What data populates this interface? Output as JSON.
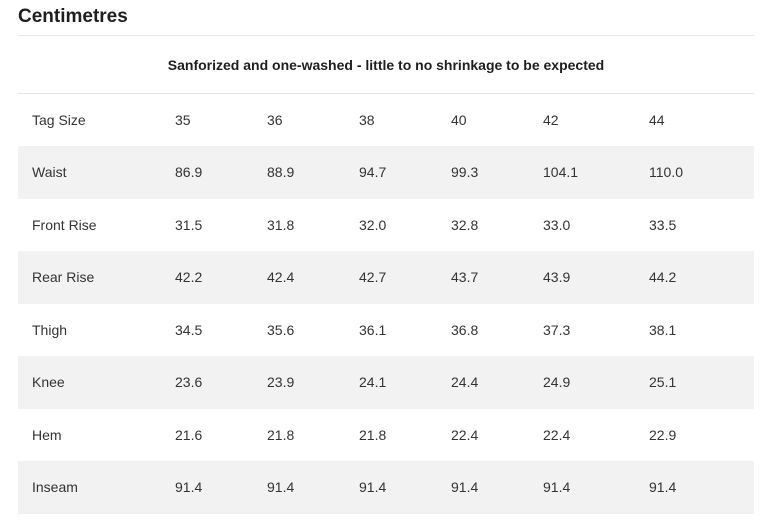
{
  "heading": "Centimetres",
  "caption": "Sanforized and one-washed - little to no shrinkage to be expected",
  "rows": [
    {
      "label": "Tag Size",
      "values": [
        "35",
        "36",
        "38",
        "40",
        "42",
        "44"
      ]
    },
    {
      "label": "Waist",
      "values": [
        "86.9",
        "88.9",
        "94.7",
        "99.3",
        "104.1",
        "110.0"
      ]
    },
    {
      "label": "Front Rise",
      "values": [
        "31.5",
        "31.8",
        "32.0",
        "32.8",
        "33.0",
        "33.5"
      ]
    },
    {
      "label": "Rear Rise",
      "values": [
        "42.2",
        "42.4",
        "42.7",
        "43.7",
        "43.9",
        "44.2"
      ]
    },
    {
      "label": "Thigh",
      "values": [
        "34.5",
        "35.6",
        "36.1",
        "36.8",
        "37.3",
        "38.1"
      ]
    },
    {
      "label": "Knee",
      "values": [
        "23.6",
        "23.9",
        "24.1",
        "24.4",
        "24.9",
        "25.1"
      ]
    },
    {
      "label": "Hem",
      "values": [
        "21.6",
        "21.8",
        "21.8",
        "22.4",
        "22.4",
        "22.9"
      ]
    },
    {
      "label": "Inseam",
      "values": [
        "91.4",
        "91.4",
        "91.4",
        "91.4",
        "91.4",
        "91.4"
      ]
    }
  ]
}
